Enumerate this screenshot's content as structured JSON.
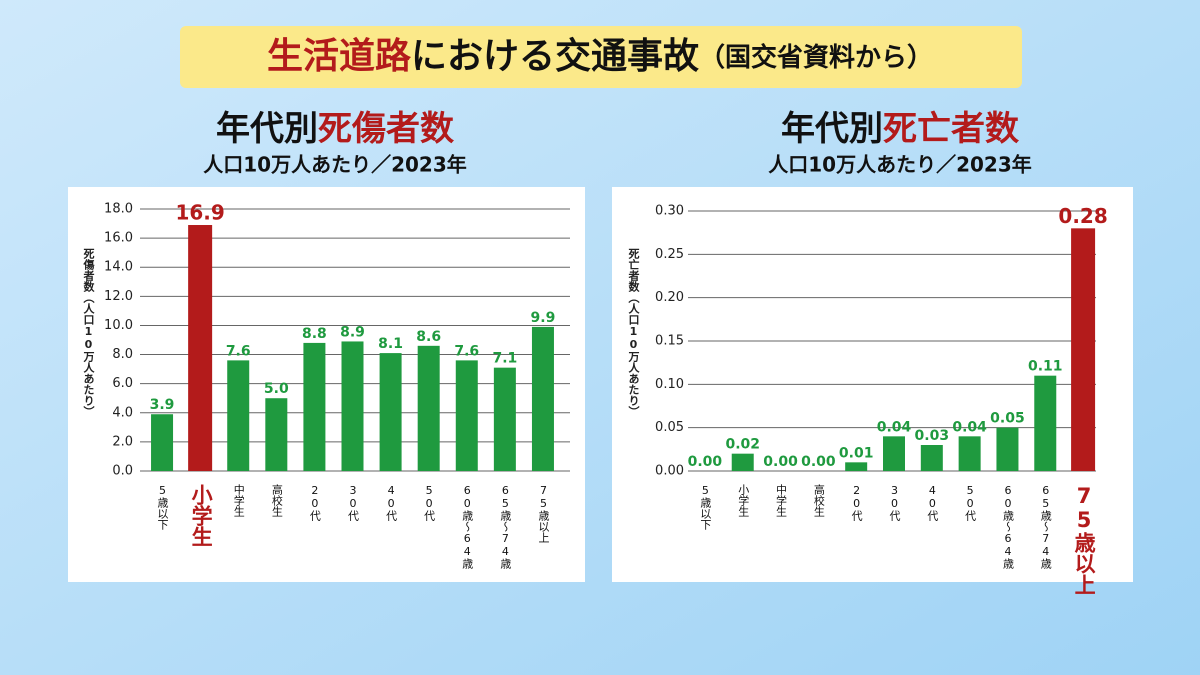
{
  "headline": [
    "生活道路",
    "における交通事故",
    "（国交省資料から）"
  ],
  "chart_data": [
    {
      "type": "bar",
      "title": [
        "年代別",
        "死傷者数"
      ],
      "subtitle": "人口10万人あたり／2023年",
      "y_label": "死傷者数（人口10万人あたり）",
      "categories": [
        "5歳以下",
        "小学生",
        "中学生",
        "高校生",
        "20代",
        "30代",
        "40代",
        "50代",
        "60歳～64歳",
        "65歳～74歳",
        "75歳以上"
      ],
      "values": [
        3.9,
        16.9,
        7.6,
        5.0,
        8.8,
        8.9,
        8.1,
        8.6,
        7.6,
        7.1,
        9.9
      ],
      "value_labels": [
        "3.9",
        "16.9",
        "7.6",
        "5.0",
        "8.8",
        "8.9",
        "8.1",
        "8.6",
        "7.6",
        "7.1",
        "9.9"
      ],
      "colors": [
        "#1f9a3f",
        "#b31b1b",
        "#1f9a3f",
        "#1f9a3f",
        "#1f9a3f",
        "#1f9a3f",
        "#1f9a3f",
        "#1f9a3f",
        "#1f9a3f",
        "#1f9a3f",
        "#1f9a3f"
      ],
      "ylim": [
        0,
        18
      ],
      "yticks": [
        {
          "value": 0,
          "label": "0.0"
        },
        {
          "value": 2,
          "label": "2.0"
        },
        {
          "value": 4,
          "label": "4.0"
        },
        {
          "value": 6,
          "label": "6.0"
        },
        {
          "value": 8,
          "label": "8.0"
        },
        {
          "value": 10,
          "label": "10.0"
        },
        {
          "value": 12,
          "label": "12.0"
        },
        {
          "value": 14,
          "label": "14.0"
        },
        {
          "value": 16,
          "label": "16.0"
        },
        {
          "value": 18,
          "label": "18.0"
        }
      ],
      "grid": true
    },
    {
      "type": "bar",
      "title": [
        "年代別",
        "死亡者数"
      ],
      "subtitle": "人口10万人あたり／2023年",
      "y_label": "死亡者数（人口10万人あたり）",
      "categories": [
        "5歳以下",
        "小学生",
        "中学生",
        "高校生",
        "20代",
        "30代",
        "40代",
        "50代",
        "60歳～64歳",
        "65歳～74歳",
        "75歳以上"
      ],
      "values": [
        0,
        0.02,
        0,
        0,
        0.01,
        0.04,
        0.03,
        0.04,
        0.05,
        0.11,
        0.28
      ],
      "value_labels": [
        "0.00",
        "0.02",
        "0.00",
        "0.00",
        "0.01",
        "0.04",
        "0.03",
        "0.04",
        "0.05",
        "0.11",
        "0.28"
      ],
      "colors": [
        "#1f9a3f",
        "#1f9a3f",
        "#1f9a3f",
        "#1f9a3f",
        "#1f9a3f",
        "#1f9a3f",
        "#1f9a3f",
        "#1f9a3f",
        "#1f9a3f",
        "#1f9a3f",
        "#b31b1b"
      ],
      "ylim": [
        0,
        0.3
      ],
      "yticks": [
        {
          "value": 0,
          "label": "0.00"
        },
        {
          "value": 0.05,
          "label": "0.05"
        },
        {
          "value": 0.1,
          "label": "0.10"
        },
        {
          "value": 0.15,
          "label": "0.15"
        },
        {
          "value": 0.2,
          "label": "0.20"
        },
        {
          "value": 0.25,
          "label": "0.25"
        },
        {
          "value": 0.3,
          "label": "0.30"
        }
      ],
      "grid": true
    }
  ]
}
